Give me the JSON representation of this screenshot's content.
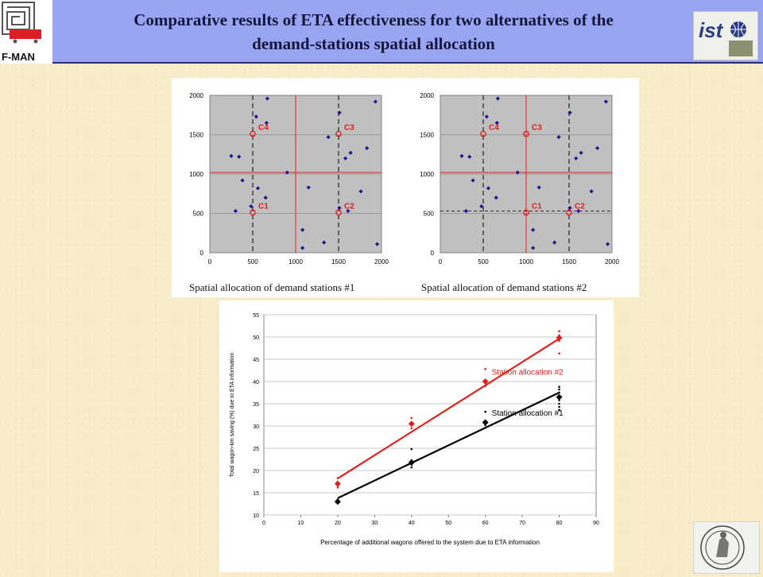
{
  "header": {
    "title_line1": "Comparative results of ETA effectiveness for two alternatives of the",
    "title_line2": "demand-stations spatial allocation",
    "logo_left_text": "F-MAN",
    "logo_right_text": "ist"
  },
  "chart_data": [
    {
      "type": "scatter",
      "caption": "Spatial allocation of demand stations #1",
      "xlim": [
        0,
        2000
      ],
      "ylim": [
        0,
        2000
      ],
      "xticks": [
        0,
        500,
        1000,
        1500,
        2000
      ],
      "yticks": [
        0,
        500,
        1000,
        1500,
        2000
      ],
      "xlabel": "",
      "ylabel": "",
      "grid": true,
      "points": [
        [
          670,
          1960
        ],
        [
          1930,
          1920
        ],
        [
          540,
          1730
        ],
        [
          1510,
          1780
        ],
        [
          660,
          1650
        ],
        [
          250,
          1230
        ],
        [
          340,
          1220
        ],
        [
          1380,
          1470
        ],
        [
          1640,
          1270
        ],
        [
          1580,
          1200
        ],
        [
          1830,
          1330
        ],
        [
          900,
          1020
        ],
        [
          1150,
          830
        ],
        [
          380,
          920
        ],
        [
          560,
          820
        ],
        [
          650,
          700
        ],
        [
          1760,
          780
        ],
        [
          300,
          530
        ],
        [
          480,
          590
        ],
        [
          1610,
          530
        ],
        [
          1510,
          570
        ],
        [
          1080,
          290
        ],
        [
          1080,
          60
        ],
        [
          1330,
          130
        ],
        [
          1950,
          110
        ]
      ],
      "centers": [
        {
          "label": "C1",
          "x": 500,
          "y": 510
        },
        {
          "label": "C2",
          "x": 1500,
          "y": 510
        },
        {
          "label": "C3",
          "x": 1500,
          "y": 1510
        },
        {
          "label": "C4",
          "x": 500,
          "y": 1510
        }
      ],
      "dashed_lines": [
        {
          "axis": "x",
          "value": 500
        },
        {
          "axis": "x",
          "value": 1500
        }
      ],
      "red_lines": [
        {
          "axis": "x",
          "value": 1000
        },
        {
          "axis": "y",
          "value": 1020
        }
      ]
    },
    {
      "type": "scatter",
      "caption": "Spatial allocation of demand stations #2",
      "xlim": [
        0,
        2000
      ],
      "ylim": [
        0,
        2000
      ],
      "xticks": [
        0,
        500,
        1000,
        1500,
        2000
      ],
      "yticks": [
        0,
        500,
        1000,
        1500,
        2000
      ],
      "xlabel": "",
      "ylabel": "",
      "grid": true,
      "points": [
        [
          670,
          1960
        ],
        [
          1930,
          1920
        ],
        [
          540,
          1730
        ],
        [
          1510,
          1780
        ],
        [
          660,
          1650
        ],
        [
          250,
          1230
        ],
        [
          340,
          1220
        ],
        [
          1380,
          1470
        ],
        [
          1640,
          1270
        ],
        [
          1580,
          1200
        ],
        [
          1830,
          1330
        ],
        [
          900,
          1020
        ],
        [
          1150,
          830
        ],
        [
          380,
          920
        ],
        [
          560,
          820
        ],
        [
          650,
          700
        ],
        [
          1760,
          780
        ],
        [
          300,
          530
        ],
        [
          480,
          590
        ],
        [
          1610,
          530
        ],
        [
          1510,
          570
        ],
        [
          1080,
          290
        ],
        [
          1080,
          60
        ],
        [
          1330,
          130
        ],
        [
          1950,
          110
        ]
      ],
      "centers": [
        {
          "label": "C1",
          "x": 1000,
          "y": 510
        },
        {
          "label": "C2",
          "x": 1500,
          "y": 510
        },
        {
          "label": "C3",
          "x": 1000,
          "y": 1510
        },
        {
          "label": "C4",
          "x": 500,
          "y": 1510
        }
      ],
      "dashed_lines": [
        {
          "axis": "x",
          "value": 500
        },
        {
          "axis": "x",
          "value": 1500
        },
        {
          "axis": "y",
          "value": 530
        }
      ],
      "red_lines": [
        {
          "axis": "x",
          "value": 1000
        },
        {
          "axis": "y",
          "value": 1020
        }
      ]
    },
    {
      "type": "scatter",
      "title": "",
      "xlabel": "Percentage of additional wagons offered to the system due to ETA information",
      "ylabel": "Total wagon-km saving (%) due to ETA information",
      "xlim": [
        0,
        90
      ],
      "ylim": [
        10,
        55
      ],
      "xticks": [
        0,
        10,
        20,
        30,
        40,
        50,
        60,
        70,
        80,
        90
      ],
      "yticks": [
        10,
        15,
        20,
        25,
        30,
        35,
        40,
        45,
        50,
        55
      ],
      "grid": true,
      "series": [
        {
          "name": "Station allocation #2",
          "color": "#e0201b",
          "means": [
            [
              20,
              17.0
            ],
            [
              40,
              30.5
            ],
            [
              60,
              40.0
            ],
            [
              80,
              49.8
            ]
          ],
          "scatter": [
            [
              20,
              18.3
            ],
            [
              20,
              16.2
            ],
            [
              20,
              17.5
            ],
            [
              40,
              31.8
            ],
            [
              40,
              29.5
            ],
            [
              40,
              30.2
            ],
            [
              60,
              42.8
            ],
            [
              60,
              39.0
            ],
            [
              60,
              40.3
            ],
            [
              80,
              51.3
            ],
            [
              80,
              46.3
            ],
            [
              80,
              50.4
            ],
            [
              80,
              49.1
            ]
          ],
          "fit": [
            [
              20,
              18.2
            ],
            [
              80,
              49.6
            ]
          ],
          "label_pos": [
            60,
            41.5
          ]
        },
        {
          "name": "Station allocation #1",
          "color": "#000000",
          "means": [
            [
              20,
              13.0
            ],
            [
              40,
              21.8
            ],
            [
              60,
              30.8
            ],
            [
              80,
              36.5
            ]
          ],
          "scatter": [
            [
              20,
              13.5
            ],
            [
              20,
              12.7
            ],
            [
              40,
              24.8
            ],
            [
              40,
              22.3
            ],
            [
              40,
              21.3
            ],
            [
              40,
              20.7
            ],
            [
              60,
              33.2
            ],
            [
              60,
              31.2
            ],
            [
              60,
              30.2
            ],
            [
              60,
              29.6
            ],
            [
              80,
              38.8
            ],
            [
              80,
              38.2
            ],
            [
              80,
              37.5
            ],
            [
              80,
              36.8
            ],
            [
              80,
              35.8
            ],
            [
              80,
              35.0
            ],
            [
              80,
              34.3
            ],
            [
              80,
              33.6
            ]
          ],
          "fit": [
            [
              20,
              13.8
            ],
            [
              80,
              37.5
            ]
          ],
          "label_pos": [
            60,
            32.3
          ]
        }
      ]
    }
  ]
}
